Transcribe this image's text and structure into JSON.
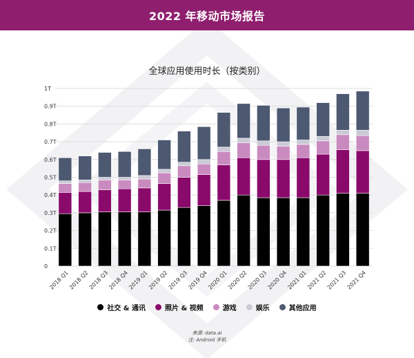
{
  "header": {
    "title": "2022 年移动市场报告"
  },
  "colors": {
    "banner": "#8f1f6e",
    "social": "#000000",
    "photo": "#8a0a6c",
    "games": "#c98bbf",
    "entertainment": "#c9cad5",
    "other": "#4d5871"
  },
  "chart_data": {
    "type": "bar",
    "stacked": true,
    "title": "全球应用使用时长（按类别）",
    "xlabel": "",
    "ylabel": "",
    "ylim": [
      0,
      1
    ],
    "yticks": [
      "0",
      "0.1T",
      "0.2T",
      "0.3T",
      "0.4T",
      "0.5T",
      "0.6T",
      "0.7T",
      "0.8T",
      "0.9T",
      "1T"
    ],
    "grid": true,
    "categories": [
      "2018 Q1",
      "2018 Q2",
      "2018 Q3",
      "2018 Q4",
      "2019 Q1",
      "2019 Q2",
      "2019 Q3",
      "2019 Q4",
      "2020 Q1",
      "2020 Q2",
      "2020 Q3",
      "2020 Q4",
      "2021 Q1",
      "2021 Q2",
      "2021 Q3",
      "2021 Q4"
    ],
    "series": [
      {
        "name": "社交 & 通讯",
        "key": "social",
        "values": [
          0.295,
          0.3,
          0.305,
          0.305,
          0.305,
          0.315,
          0.33,
          0.34,
          0.37,
          0.4,
          0.385,
          0.385,
          0.385,
          0.4,
          0.41,
          0.41
        ]
      },
      {
        "name": "照片 & 视频",
        "key": "photo",
        "values": [
          0.12,
          0.12,
          0.125,
          0.13,
          0.135,
          0.15,
          0.17,
          0.175,
          0.2,
          0.21,
          0.215,
          0.215,
          0.225,
          0.23,
          0.245,
          0.24
        ]
      },
      {
        "name": "游戏",
        "key": "games",
        "values": [
          0.05,
          0.05,
          0.055,
          0.05,
          0.05,
          0.06,
          0.065,
          0.06,
          0.075,
          0.085,
          0.08,
          0.075,
          0.075,
          0.075,
          0.085,
          0.085
        ]
      },
      {
        "name": "娱乐",
        "key": "entertainment",
        "values": [
          0.015,
          0.015,
          0.015,
          0.015,
          0.02,
          0.02,
          0.02,
          0.025,
          0.025,
          0.025,
          0.025,
          0.025,
          0.025,
          0.025,
          0.025,
          0.03
        ]
      },
      {
        "name": "其他应用",
        "key": "other",
        "values": [
          0.13,
          0.135,
          0.14,
          0.145,
          0.15,
          0.165,
          0.175,
          0.185,
          0.195,
          0.195,
          0.2,
          0.19,
          0.185,
          0.19,
          0.205,
          0.22
        ]
      }
    ],
    "legend_position": "bottom"
  },
  "source": {
    "line1": "来源: data.ai",
    "line2": "注: Android 手机"
  }
}
